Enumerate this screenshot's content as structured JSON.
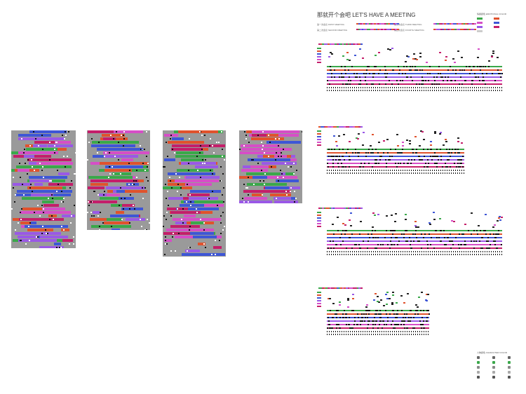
{
  "title": "那就开个会吧  LET'S HAVE A MEETING",
  "legend_title": "情绪颜色 EMOTIONAL COLOR",
  "legend_items": [
    {
      "label": "",
      "color": "#3aa84a"
    },
    {
      "label": "",
      "color": "#e0522d"
    },
    {
      "label": "",
      "color": "#d64ec7"
    },
    {
      "label": "",
      "color": "#3e56d6"
    },
    {
      "label": "",
      "color": "#9a58e6"
    },
    {
      "label": "",
      "color": "#c41e6a"
    },
    {
      "label": "",
      "color": "#cccccc"
    }
  ],
  "meetings": [
    {
      "label": "第一次会议 FIRST MEETING"
    },
    {
      "label": "第二次会议 SECOND MEETING"
    },
    {
      "label": "第三次会议 THIRD MEETING"
    },
    {
      "label": "第四次会议 FOURTH MEETING"
    }
  ],
  "bottom_legend_title": "人物颜色 CHARACTER COLOR",
  "colors": {
    "gray": "#9a9a9a",
    "green": "#3aa84a",
    "orange": "#e0522d",
    "pink": "#d64ec7",
    "blue": "#3e56d6",
    "purple": "#9a58e6",
    "magenta": "#c41e6a"
  }
}
